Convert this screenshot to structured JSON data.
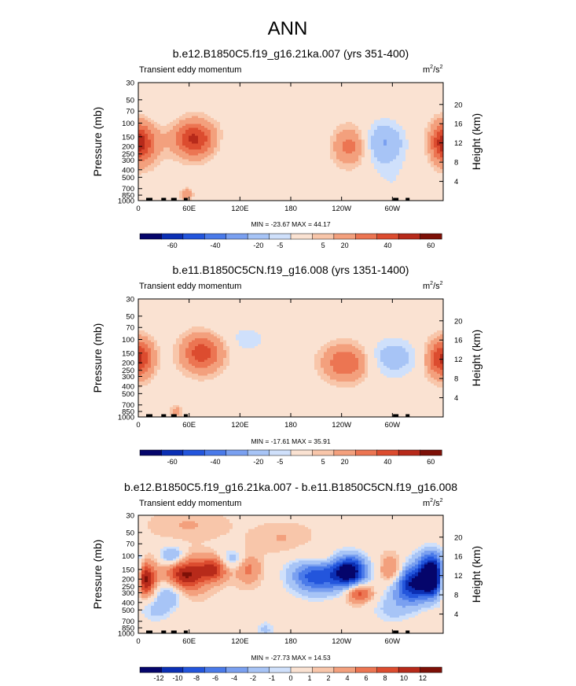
{
  "figure": {
    "title": "ANN"
  },
  "chart_data": [
    {
      "type": "heatmap",
      "title": "b.e12.B1850C5.f19_g16.21ka.007 (yrs 351-400)",
      "subtitle": "Transient eddy momentum",
      "units_base": "m",
      "units_exp1": "2",
      "units_mid": "/s",
      "units_exp2": "2",
      "ylabel": "Pressure (mb)",
      "ylabel_right": "Height (km)",
      "x_ticks": [
        "0",
        "60E",
        "120E",
        "180",
        "120W",
        "60W"
      ],
      "x_tick_lon": [
        0,
        60,
        120,
        180,
        240,
        300
      ],
      "xlim": [
        0,
        360
      ],
      "y_ticks": [
        "30",
        "50",
        "70",
        "100",
        "150",
        "200",
        "250",
        "300",
        "400",
        "500",
        "700",
        "850",
        "1000"
      ],
      "y_tick_p": [
        30,
        50,
        70,
        100,
        150,
        200,
        250,
        300,
        400,
        500,
        700,
        850,
        1000
      ],
      "ylim": [
        30,
        1000
      ],
      "height_ticks": [
        "4",
        "8",
        "12",
        "16",
        "20"
      ],
      "height_tick_km": [
        4,
        8,
        12,
        16,
        20
      ],
      "stats": "MIN = -23.67  MAX = 44.17",
      "colorbar_labels": [
        "-60",
        "-40",
        "-20",
        "-5",
        "5",
        "20",
        "40",
        "60"
      ],
      "colorbar_colors": [
        "#05056b",
        "#0b2fb4",
        "#2355dc",
        "#4a7ae9",
        "#7aa0f0",
        "#a7c4f6",
        "#cfe0fb",
        "#fae2d2",
        "#f8c6aa",
        "#f3a07d",
        "#ec7552",
        "#dc4c2f",
        "#b72a1a",
        "#7d1007"
      ],
      "blobs": [
        {
          "lon": 6,
          "p": 180,
          "v": 28,
          "wl": 14,
          "wz": 0.45
        },
        {
          "lon": 66,
          "p": 160,
          "v": 42,
          "wl": 17,
          "wz": 0.38
        },
        {
          "lon": 57,
          "p": 830,
          "v": 18,
          "wl": 5,
          "wz": 0.12
        },
        {
          "lon": 25,
          "p": 70,
          "v": -5,
          "wl": 14,
          "wz": 0.3
        },
        {
          "lon": 110,
          "p": 210,
          "v": -4,
          "wl": 15,
          "wz": 0.35
        },
        {
          "lon": 138,
          "p": 120,
          "v": 4,
          "wl": 12,
          "wz": 0.3
        },
        {
          "lon": 200,
          "p": 110,
          "v": -5,
          "wl": 14,
          "wz": 0.4
        },
        {
          "lon": 250,
          "p": 200,
          "v": 24,
          "wl": 14,
          "wz": 0.4
        },
        {
          "lon": 290,
          "p": 180,
          "v": -21,
          "wl": 17,
          "wz": 0.45
        },
        {
          "lon": 358,
          "p": 180,
          "v": 22,
          "wl": 9,
          "wz": 0.4
        },
        {
          "lon": 300,
          "p": 600,
          "v": -5,
          "wl": 22,
          "wz": 0.5
        }
      ]
    },
    {
      "type": "heatmap",
      "title": "b.e11.B1850C5CN.f19_g16.008 (yrs 1351-1400)",
      "subtitle": "Transient eddy momentum",
      "units_base": "m",
      "units_exp1": "2",
      "units_mid": "/s",
      "units_exp2": "2",
      "ylabel": "Pressure (mb)",
      "ylabel_right": "Height (km)",
      "x_ticks": [
        "0",
        "60E",
        "120E",
        "180",
        "120W",
        "60W"
      ],
      "x_tick_lon": [
        0,
        60,
        120,
        180,
        240,
        300
      ],
      "xlim": [
        0,
        360
      ],
      "y_ticks": [
        "30",
        "50",
        "70",
        "100",
        "150",
        "200",
        "250",
        "300",
        "400",
        "500",
        "700",
        "850",
        "1000"
      ],
      "y_tick_p": [
        30,
        50,
        70,
        100,
        150,
        200,
        250,
        300,
        400,
        500,
        700,
        850,
        1000
      ],
      "ylim": [
        30,
        1000
      ],
      "height_ticks": [
        "4",
        "8",
        "12",
        "16",
        "20"
      ],
      "height_tick_km": [
        4,
        8,
        12,
        16,
        20
      ],
      "stats": "MIN = -17.61  MAX = 35.91",
      "colorbar_labels": [
        "-60",
        "-40",
        "-20",
        "-5",
        "5",
        "20",
        "40",
        "60"
      ],
      "colorbar_colors": [
        "#05056b",
        "#0b2fb4",
        "#2355dc",
        "#4a7ae9",
        "#7aa0f0",
        "#a7c4f6",
        "#cfe0fb",
        "#fae2d2",
        "#f8c6aa",
        "#f3a07d",
        "#ec7552",
        "#dc4c2f",
        "#b72a1a",
        "#7d1007"
      ],
      "blobs": [
        {
          "lon": 6,
          "p": 170,
          "v": 20,
          "wl": 11,
          "wz": 0.4
        },
        {
          "lon": 75,
          "p": 150,
          "v": 36,
          "wl": 17,
          "wz": 0.4
        },
        {
          "lon": 45,
          "p": 850,
          "v": 14,
          "wl": 5,
          "wz": 0.12
        },
        {
          "lon": 130,
          "p": 100,
          "v": -10,
          "wl": 14,
          "wz": 0.25
        },
        {
          "lon": 100,
          "p": 60,
          "v": -4,
          "wl": 14,
          "wz": 0.3
        },
        {
          "lon": 245,
          "p": 200,
          "v": 30,
          "wl": 19,
          "wz": 0.38
        },
        {
          "lon": 300,
          "p": 170,
          "v": -16,
          "wl": 22,
          "wz": 0.4
        },
        {
          "lon": 355,
          "p": 180,
          "v": 28,
          "wl": 12,
          "wz": 0.4
        },
        {
          "lon": 30,
          "p": 60,
          "v": -4,
          "wl": 12,
          "wz": 0.3
        },
        {
          "lon": 150,
          "p": 400,
          "v": -3,
          "wl": 18,
          "wz": 0.4
        },
        {
          "lon": 300,
          "p": 650,
          "v": -4,
          "wl": 20,
          "wz": 0.4
        }
      ]
    },
    {
      "type": "heatmap",
      "title": "b.e12.B1850C5.f19_g16.21ka.007 - b.e11.B1850C5CN.f19_g16.008",
      "subtitle": "Transient eddy momentum",
      "units_base": "m",
      "units_exp1": "2",
      "units_mid": "/s",
      "units_exp2": "2",
      "ylabel": "Pressure (mb)",
      "ylabel_right": "Height (km)",
      "x_ticks": [
        "0",
        "60E",
        "120E",
        "180",
        "120W",
        "60W"
      ],
      "x_tick_lon": [
        0,
        60,
        120,
        180,
        240,
        300
      ],
      "xlim": [
        0,
        360
      ],
      "y_ticks": [
        "30",
        "50",
        "70",
        "100",
        "150",
        "200",
        "250",
        "300",
        "400",
        "500",
        "700",
        "850",
        "1000"
      ],
      "y_tick_p": [
        30,
        50,
        70,
        100,
        150,
        200,
        250,
        300,
        400,
        500,
        700,
        850,
        1000
      ],
      "ylim": [
        30,
        1000
      ],
      "height_ticks": [
        "4",
        "8",
        "12",
        "16",
        "20"
      ],
      "height_tick_km": [
        4,
        8,
        12,
        16,
        20
      ],
      "stats": "MIN = -27.73  MAX = 14.53",
      "colorbar_labels": [
        "-12",
        "-10",
        "-8",
        "-6",
        "-4",
        "-2",
        "-1",
        "0",
        "1",
        "2",
        "4",
        "6",
        "8",
        "10",
        "12"
      ],
      "colorbar_colors": [
        "#05056b",
        "#0b2fb4",
        "#2355dc",
        "#4a7ae9",
        "#7aa0f0",
        "#a7c4f6",
        "#cfe0fb",
        "#fae2d2",
        "#f8c6aa",
        "#f3a07d",
        "#ec7552",
        "#dc4c2f",
        "#b72a1a",
        "#7d1007"
      ],
      "blobs": [
        {
          "lon": 6,
          "p": 200,
          "v": 14,
          "wl": 9,
          "wz": 0.35
        },
        {
          "lon": 55,
          "p": 180,
          "v": 10,
          "wl": 16,
          "wz": 0.35
        },
        {
          "lon": 88,
          "p": 150,
          "v": 8,
          "wl": 12,
          "wz": 0.25
        },
        {
          "lon": 40,
          "p": 100,
          "v": -6,
          "wl": 10,
          "wz": 0.2
        },
        {
          "lon": 110,
          "p": 110,
          "v": -4,
          "wl": 10,
          "wz": 0.2
        },
        {
          "lon": 130,
          "p": 150,
          "v": 4,
          "wl": 10,
          "wz": 0.3
        },
        {
          "lon": 38,
          "p": 300,
          "v": -5,
          "wl": 12,
          "wz": 0.3
        },
        {
          "lon": 20,
          "p": 500,
          "v": -3,
          "wl": 14,
          "wz": 0.3
        },
        {
          "lon": 210,
          "p": 180,
          "v": -10,
          "wl": 22,
          "wz": 0.4
        },
        {
          "lon": 250,
          "p": 160,
          "v": -14,
          "wl": 14,
          "wz": 0.35
        },
        {
          "lon": 260,
          "p": 300,
          "v": 8,
          "wl": 11,
          "wz": 0.2
        },
        {
          "lon": 215,
          "p": 110,
          "v": 3,
          "wl": 18,
          "wz": 0.2
        },
        {
          "lon": 300,
          "p": 160,
          "v": 6,
          "wl": 10,
          "wz": 0.3
        },
        {
          "lon": 325,
          "p": 230,
          "v": -13,
          "wl": 18,
          "wz": 0.4
        },
        {
          "lon": 350,
          "p": 190,
          "v": -16,
          "wl": 10,
          "wz": 0.35
        },
        {
          "lon": 345,
          "p": 110,
          "v": -5,
          "wl": 12,
          "wz": 0.3
        },
        {
          "lon": 150,
          "p": 900,
          "v": -3,
          "wl": 8,
          "wz": 0.2
        },
        {
          "lon": 300,
          "p": 500,
          "v": -3,
          "wl": 18,
          "wz": 0.3
        },
        {
          "lon": 170,
          "p": 60,
          "v": 1.5,
          "wl": 25,
          "wz": 0.3
        },
        {
          "lon": 60,
          "p": 40,
          "v": 1.5,
          "wl": 30,
          "wz": 0.3
        }
      ]
    }
  ]
}
